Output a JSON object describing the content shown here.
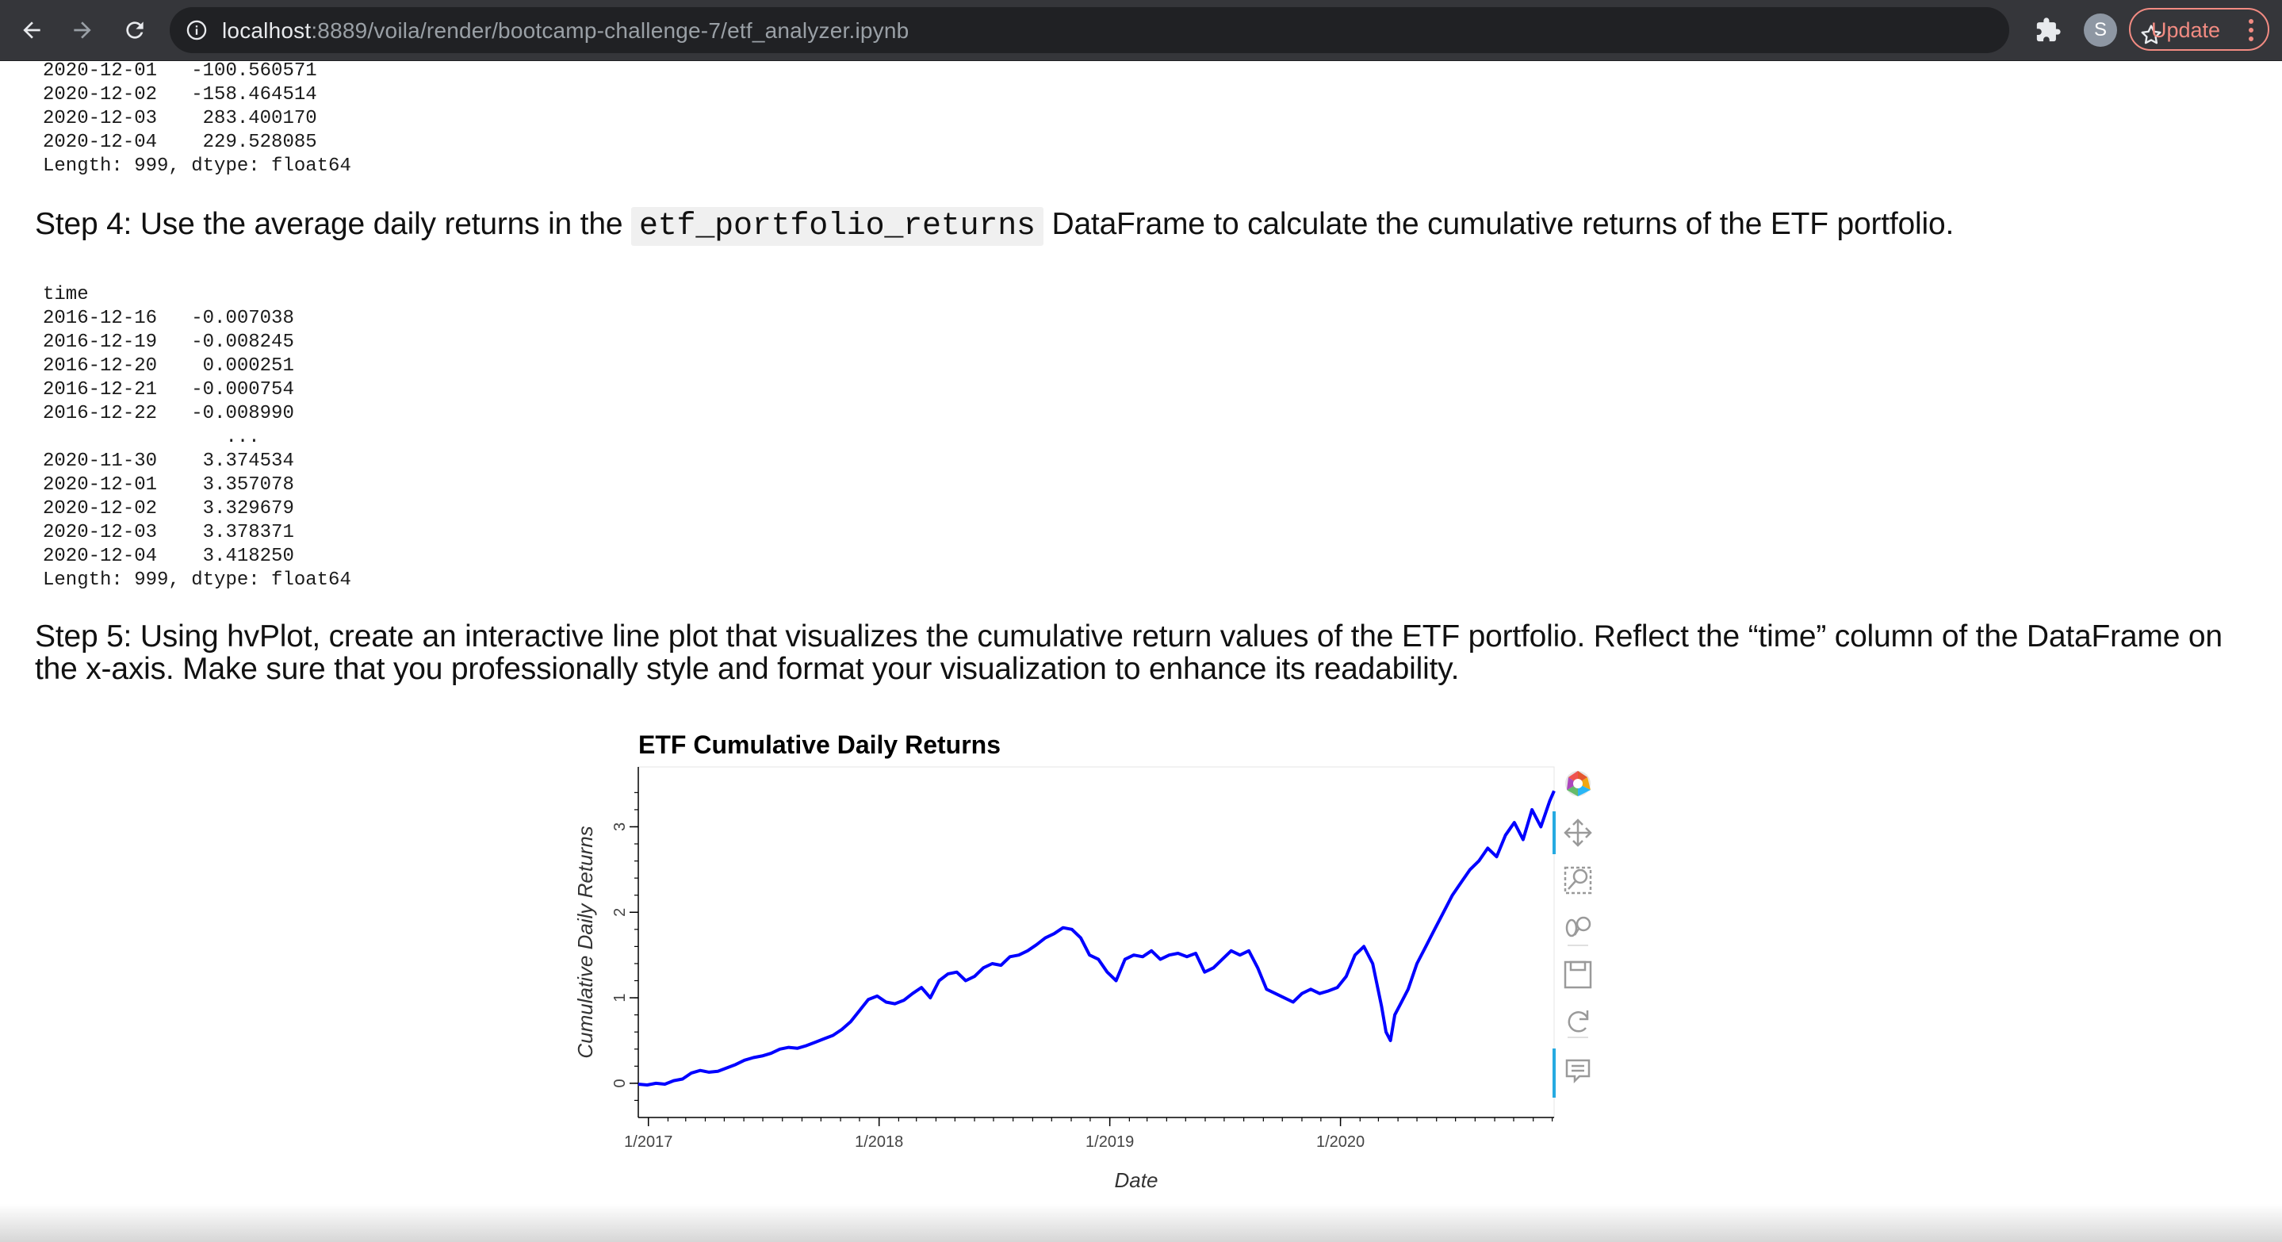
{
  "browser": {
    "url_host": "localhost",
    "url_rest": ":8889/voila/render/bootcamp-challenge-7/etf_analyzer.ipynb",
    "profile_initial": "S",
    "update_label": "Update",
    "icons": [
      "back-arrow-icon",
      "forward-arrow-icon",
      "reload-icon",
      "info-icon",
      "star-icon",
      "puzzle-icon",
      "kebab-menu-icon"
    ]
  },
  "output_top": {
    "lines": [
      "2020-12-01   -100.560571",
      "2020-12-02   -158.464514",
      "2020-12-03    283.400170",
      "2020-12-04    229.528085",
      "Length: 999, dtype: float64"
    ]
  },
  "step4": {
    "prefix": "Step 4: Use the average daily returns in the ",
    "code": "etf_portfolio_returns",
    "suffix": " DataFrame to calculate the cumulative returns of the ETF portfolio."
  },
  "output_cumulative": {
    "lines": [
      "time",
      "2016-12-16   -0.007038",
      "2016-12-19   -0.008245",
      "2016-12-20    0.000251",
      "2016-12-21   -0.000754",
      "2016-12-22   -0.008990",
      "                ...",
      "2020-11-30    3.374534",
      "2020-12-01    3.357078",
      "2020-12-02    3.329679",
      "2020-12-03    3.378371",
      "2020-12-04    3.418250",
      "Length: 999, dtype: float64"
    ]
  },
  "step5": {
    "text": "Step 5: Using hvPlot, create an interactive line plot that visualizes the cumulative return values of the ETF portfolio. Reflect the “time” column of the DataFrame on the x-axis. Make sure that you professionally style and format your visualization to enhance its readability."
  },
  "chart_data": {
    "type": "line",
    "title": "ETF Cumulative Daily Returns",
    "xlabel": "Date",
    "ylabel": "Cumulative Daily Returns",
    "xlim": [
      "2016-12-16",
      "2020-12-04"
    ],
    "ylim": [
      -0.4,
      3.7
    ],
    "x_ticks": [
      "1/2017",
      "1/2018",
      "1/2019",
      "1/2020"
    ],
    "y_ticks": [
      0,
      1,
      2,
      3
    ],
    "line_color": "#0000ff",
    "grid": false,
    "toolbar_icons": [
      "bokeh-logo-icon",
      "pan-icon",
      "box-zoom-icon",
      "wheel-zoom-icon",
      "save-icon",
      "reset-icon",
      "hover-icon"
    ],
    "series": [
      {
        "x": [
          "2016-12-16",
          "2016-12-30",
          "2017-01-13",
          "2017-01-27",
          "2017-02-10",
          "2017-02-24",
          "2017-03-10",
          "2017-03-24",
          "2017-04-07",
          "2017-04-21",
          "2017-05-05",
          "2017-05-19",
          "2017-06-02",
          "2017-06-16",
          "2017-06-30",
          "2017-07-14",
          "2017-07-28",
          "2017-08-11",
          "2017-08-25",
          "2017-09-08",
          "2017-09-22",
          "2017-10-06",
          "2017-10-20",
          "2017-11-03",
          "2017-11-17",
          "2017-12-01",
          "2017-12-15",
          "2017-12-29",
          "2018-01-12",
          "2018-01-26",
          "2018-02-09",
          "2018-02-23",
          "2018-03-09",
          "2018-03-23",
          "2018-04-06",
          "2018-04-20",
          "2018-05-04",
          "2018-05-18",
          "2018-06-01",
          "2018-06-15",
          "2018-06-29",
          "2018-07-13",
          "2018-07-27",
          "2018-08-10",
          "2018-08-24",
          "2018-09-07",
          "2018-09-21",
          "2018-10-05",
          "2018-10-19",
          "2018-11-02",
          "2018-11-16",
          "2018-11-30",
          "2018-12-14",
          "2018-12-28",
          "2019-01-11",
          "2019-01-25",
          "2019-02-08",
          "2019-02-22",
          "2019-03-08",
          "2019-03-22",
          "2019-04-05",
          "2019-04-19",
          "2019-05-03",
          "2019-05-17",
          "2019-05-31",
          "2019-06-14",
          "2019-06-28",
          "2019-07-12",
          "2019-07-26",
          "2019-08-09",
          "2019-08-23",
          "2019-09-06",
          "2019-09-20",
          "2019-10-04",
          "2019-10-18",
          "2019-11-01",
          "2019-11-15",
          "2019-11-29",
          "2019-12-13",
          "2019-12-27",
          "2020-01-10",
          "2020-01-24",
          "2020-02-07",
          "2020-02-21",
          "2020-03-06",
          "2020-03-13",
          "2020-03-20",
          "2020-03-27",
          "2020-04-03",
          "2020-04-17",
          "2020-05-01",
          "2020-05-15",
          "2020-05-29",
          "2020-06-12",
          "2020-06-26",
          "2020-07-10",
          "2020-07-24",
          "2020-08-07",
          "2020-08-21",
          "2020-09-04",
          "2020-09-18",
          "2020-10-02",
          "2020-10-16",
          "2020-10-30",
          "2020-11-13",
          "2020-11-27",
          "2020-12-04"
        ],
        "y": [
          -0.01,
          -0.02,
          0.0,
          -0.01,
          0.03,
          0.05,
          0.12,
          0.15,
          0.13,
          0.14,
          0.18,
          0.22,
          0.27,
          0.3,
          0.32,
          0.35,
          0.4,
          0.42,
          0.41,
          0.44,
          0.48,
          0.52,
          0.56,
          0.63,
          0.72,
          0.85,
          0.98,
          1.02,
          0.95,
          0.93,
          0.97,
          1.05,
          1.12,
          1.0,
          1.2,
          1.28,
          1.3,
          1.2,
          1.25,
          1.35,
          1.4,
          1.38,
          1.48,
          1.5,
          1.55,
          1.62,
          1.7,
          1.75,
          1.82,
          1.8,
          1.7,
          1.5,
          1.45,
          1.3,
          1.2,
          1.45,
          1.5,
          1.48,
          1.55,
          1.45,
          1.5,
          1.52,
          1.48,
          1.52,
          1.3,
          1.35,
          1.45,
          1.55,
          1.5,
          1.55,
          1.35,
          1.1,
          1.05,
          1.0,
          0.95,
          1.05,
          1.1,
          1.05,
          1.08,
          1.12,
          1.25,
          1.5,
          1.6,
          1.4,
          0.9,
          0.6,
          0.5,
          0.8,
          0.9,
          1.1,
          1.4,
          1.6,
          1.8,
          2.0,
          2.2,
          2.35,
          2.5,
          2.6,
          2.75,
          2.65,
          2.9,
          3.05,
          2.85,
          3.2,
          3.0,
          3.3,
          3.42
        ]
      }
    ]
  }
}
